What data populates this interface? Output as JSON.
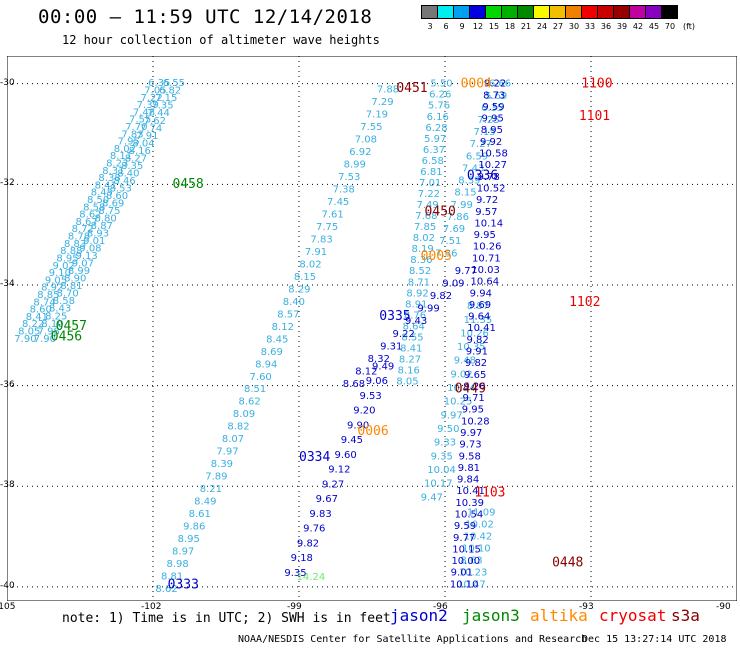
{
  "header": {
    "title": "00:00 – 11:59 UTC 12/14/2018",
    "subtitle": "12 hour collection of altimeter wave heights"
  },
  "colorbar": {
    "unit_label": "(ft)",
    "items": [
      {
        "label": "3",
        "color": "#777777"
      },
      {
        "label": "6",
        "color": "#00eeee"
      },
      {
        "label": "9",
        "color": "#00a0f0"
      },
      {
        "label": "12",
        "color": "#0000e0"
      },
      {
        "label": "15",
        "color": "#00d800"
      },
      {
        "label": "18",
        "color": "#00b000"
      },
      {
        "label": "21",
        "color": "#008800"
      },
      {
        "label": "24",
        "color": "#f8f800"
      },
      {
        "label": "27",
        "color": "#f0c000"
      },
      {
        "label": "30",
        "color": "#f08000"
      },
      {
        "label": "33",
        "color": "#f00000"
      },
      {
        "label": "36",
        "color": "#c80000"
      },
      {
        "label": "39",
        "color": "#980000"
      },
      {
        "label": "42",
        "color": "#c000a0"
      },
      {
        "label": "45",
        "color": "#8800c0"
      },
      {
        "label": "70",
        "color": "#000000"
      }
    ]
  },
  "axes": {
    "lon_labels": [
      "-105",
      "-102",
      "-99",
      "-96",
      "-93",
      "-90"
    ],
    "lat_labels": [
      "-30",
      "-32",
      "-34",
      "-36",
      "-38",
      "-40"
    ],
    "lon_range": [
      -105,
      -90
    ],
    "lat_range": [
      -29.45,
      -40.28
    ]
  },
  "colors": {
    "jason2": "#0000cc",
    "jason3": "#008800",
    "altika": "#ff8800",
    "cryosat": "#ee0000",
    "s3a": "#880000",
    "cyan": "#3ab0e0",
    "lightgreen": "#66ee66"
  },
  "time_labels": [
    {
      "text": "0451",
      "lon": -97.0,
      "lat": -30.07,
      "sat": "s3a"
    },
    {
      "text": "0004",
      "lon": -95.68,
      "lat": -29.98,
      "sat": "altika"
    },
    {
      "text": "1100",
      "lon": -93.2,
      "lat": -29.98,
      "sat": "cryosat"
    },
    {
      "text": "1101",
      "lon": -93.25,
      "lat": -30.62,
      "sat": "cryosat"
    },
    {
      "text": "0458",
      "lon": -101.6,
      "lat": -31.97,
      "sat": "jason3"
    },
    {
      "text": "0336",
      "lon": -95.55,
      "lat": -31.8,
      "sat": "jason2"
    },
    {
      "text": "0450",
      "lon": -96.42,
      "lat": -32.52,
      "sat": "s3a"
    },
    {
      "text": "0005",
      "lon": -96.5,
      "lat": -33.4,
      "sat": "altika"
    },
    {
      "text": "1102",
      "lon": -93.45,
      "lat": -34.32,
      "sat": "cryosat"
    },
    {
      "text": "0457",
      "lon": -104.0,
      "lat": -34.8,
      "sat": "jason3"
    },
    {
      "text": "0456",
      "lon": -104.1,
      "lat": -35.0,
      "sat": "jason3"
    },
    {
      "text": "0335",
      "lon": -97.35,
      "lat": -34.6,
      "sat": "jason2"
    },
    {
      "text": "0449",
      "lon": -95.8,
      "lat": -36.04,
      "sat": "s3a"
    },
    {
      "text": "0006",
      "lon": -97.8,
      "lat": -36.88,
      "sat": "altika"
    },
    {
      "text": "0334",
      "lon": -99.0,
      "lat": -37.4,
      "sat": "jason2"
    },
    {
      "text": "1103",
      "lon": -95.4,
      "lat": -38.1,
      "sat": "cryosat"
    },
    {
      "text": "0448",
      "lon": -93.8,
      "lat": -39.5,
      "sat": "s3a"
    },
    {
      "text": "0333",
      "lon": -101.7,
      "lat": -39.93,
      "sat": "jason2"
    }
  ],
  "swh_tracks": [
    {
      "color": "cyan",
      "start": [
        -102.1,
        -29.97
      ],
      "end": [
        -104.85,
        -35.05
      ],
      "values": [
        "6.35",
        "7.05",
        "7.22",
        "7.39",
        "7.48",
        "7.55",
        "7.70",
        "7.83",
        "7.95",
        "8.02",
        "8.11",
        "8.23",
        "8.31",
        "8.38",
        "8.41",
        "8.45",
        "8.50",
        "8.58",
        "8.62",
        "8.67",
        "8.72",
        "8.78",
        "8.83",
        "8.88",
        "8.95",
        "9.02",
        "9.10",
        "9.05",
        "8.92",
        "8.85",
        "8.74",
        "8.60",
        "8.41",
        "8.22",
        "8.05",
        "7.90"
      ]
    },
    {
      "color": "cyan",
      "start": [
        -101.8,
        -29.97
      ],
      "end": [
        -104.45,
        -35.05
      ],
      "values": [
        "6.55",
        "6.82",
        "7.15",
        "7.35",
        "7.44",
        "7.62",
        "7.74",
        "7.91",
        "8.04",
        "8.16",
        "8.27",
        "8.35",
        "8.40",
        "8.46",
        "8.53",
        "8.60",
        "8.69",
        "8.75",
        "8.80",
        "8.87",
        "8.93",
        "9.01",
        "9.08",
        "9.13",
        "9.07",
        "8.99",
        "8.90",
        "8.81",
        "8.70",
        "8.58",
        "8.43",
        "8.25",
        "8.10",
        "7.98",
        "7.90"
      ]
    },
    {
      "color": "cyan",
      "start": [
        -97.4,
        -30.1
      ],
      "end": [
        -101.95,
        -40.02
      ],
      "values": [
        "7.88",
        "7.29",
        "7.19",
        "7.55",
        "7.08",
        "6.92",
        "8.99",
        "7.53",
        "7.38",
        "7.45",
        "7.61",
        "7.75",
        "7.83",
        "7.91",
        "8.02",
        "8.15",
        "8.29",
        "8.40",
        "8.57",
        "8.12",
        "8.45",
        "8.69",
        "8.94",
        "7.60",
        "8.51",
        "8.62",
        "8.09",
        "8.82",
        "8.07",
        "7.97",
        "8.39",
        "7.89",
        "8.21",
        "8.49",
        "8.61",
        "9.86",
        "8.95",
        "8.97",
        "8.98",
        "8.81",
        "8.62"
      ]
    },
    {
      "color": "cyan",
      "start": [
        -96.3,
        -29.98
      ],
      "end": [
        -97.0,
        -35.9
      ],
      "values": [
        "5.50",
        "6.26",
        "5.76",
        "6.16",
        "6.28",
        "5.97",
        "6.37",
        "6.58",
        "6.81",
        "7.01",
        "7.22",
        "7.49",
        "7.68",
        "7.85",
        "8.02",
        "8.19",
        "8.36",
        "8.52",
        "8.71",
        "8.92",
        "8.91",
        "8.76",
        "8.64",
        "8.55",
        "8.41",
        "8.27",
        "8.16",
        "8.05"
      ]
    },
    {
      "color": "cyan",
      "start": [
        -95.1,
        -29.98
      ],
      "end": [
        -96.2,
        -33.35
      ],
      "values": [
        "6.66",
        "5.69",
        "6.35",
        "7.25",
        "7.15",
        "7.27",
        "6.59",
        "7.43",
        "8.39",
        "8.15",
        "7.99",
        "7.86",
        "7.69",
        "7.51",
        "7.36"
      ]
    },
    {
      "color": "cyan",
      "start": [
        -95.55,
        -34.4
      ],
      "end": [
        -96.5,
        -38.2
      ],
      "values": [
        "8.87",
        "11.35",
        "10.26",
        "10.35",
        "9.48",
        "9.02",
        "10.24",
        "10.25",
        "9.97",
        "9.50",
        "9.33",
        "9.35",
        "10.04",
        "10.17",
        "9.47"
      ]
    },
    {
      "color": "cyan",
      "start": [
        -95.55,
        -38.5
      ],
      "end": [
        -95.75,
        -39.93
      ],
      "values": [
        "11.09",
        "10.02",
        "10.42",
        "10.10",
        "8.63",
        "10.23",
        "10.47"
      ]
    },
    {
      "color": "jason2",
      "start": [
        -95.2,
        -29.98
      ],
      "end": [
        -95.9,
        -39.93
      ],
      "values": [
        "9.22",
        "8.73",
        "9.59",
        "9.95",
        "8.95",
        "9.92",
        "10.58",
        "10.27",
        "9.78",
        "10.52",
        "9.72",
        "9.57",
        "10.14",
        "9.95",
        "10.26",
        "10.71",
        "10.03",
        "10.64",
        "9.94",
        "9.69",
        "9.64",
        "10.41",
        "9.82",
        "9.91",
        "9.82",
        "9.65",
        "9.26",
        "9.71",
        "9.95",
        "10.28",
        "9.97",
        "9.73",
        "9.58",
        "9.81",
        "9.84",
        "10.41",
        "10.39",
        "10.54",
        "9.59",
        "9.77",
        "10.15",
        "10.00",
        "9.01",
        "10.10"
      ]
    },
    {
      "color": "jason2",
      "start": [
        -95.8,
        -33.7
      ],
      "end": [
        -98.1,
        -35.95
      ],
      "values": [
        "9.77",
        "9.09",
        "9.82",
        "9.99",
        "9.43",
        "9.22",
        "9.31",
        "8.32",
        "8.12",
        "8.68"
      ]
    },
    {
      "color": "jason2",
      "start": [
        -97.5,
        -35.6
      ],
      "end": [
        -99.3,
        -39.7
      ],
      "values": [
        "9.49",
        "9.06",
        "9.53",
        "9.20",
        "9.90",
        "9.45",
        "9.60",
        "9.12",
        "9.27",
        "9.67",
        "9.83",
        "9.76",
        "9.82",
        "9.18",
        "9.35"
      ]
    },
    {
      "color": "lightgreen",
      "start": [
        -99.05,
        -39.78
      ],
      "end": [
        -99.05,
        -39.78
      ],
      "values": [
        "14.24"
      ]
    }
  ],
  "footer": {
    "note": "note: 1) Time is in UTC; 2) SWH is in feet",
    "legend_items": [
      {
        "label": "jason2",
        "color": "#0000cc"
      },
      {
        "label": "jason3",
        "color": "#008800"
      },
      {
        "label": "altika",
        "color": "#ff8800"
      },
      {
        "label": "cryosat",
        "color": "#ee0000"
      },
      {
        "label": "s3a",
        "color": "#880000"
      }
    ],
    "credit": "NOAA/NESDIS Center for Satellite Applications and Research",
    "date": "Dec 15 13:27:14 UTC 2018"
  }
}
